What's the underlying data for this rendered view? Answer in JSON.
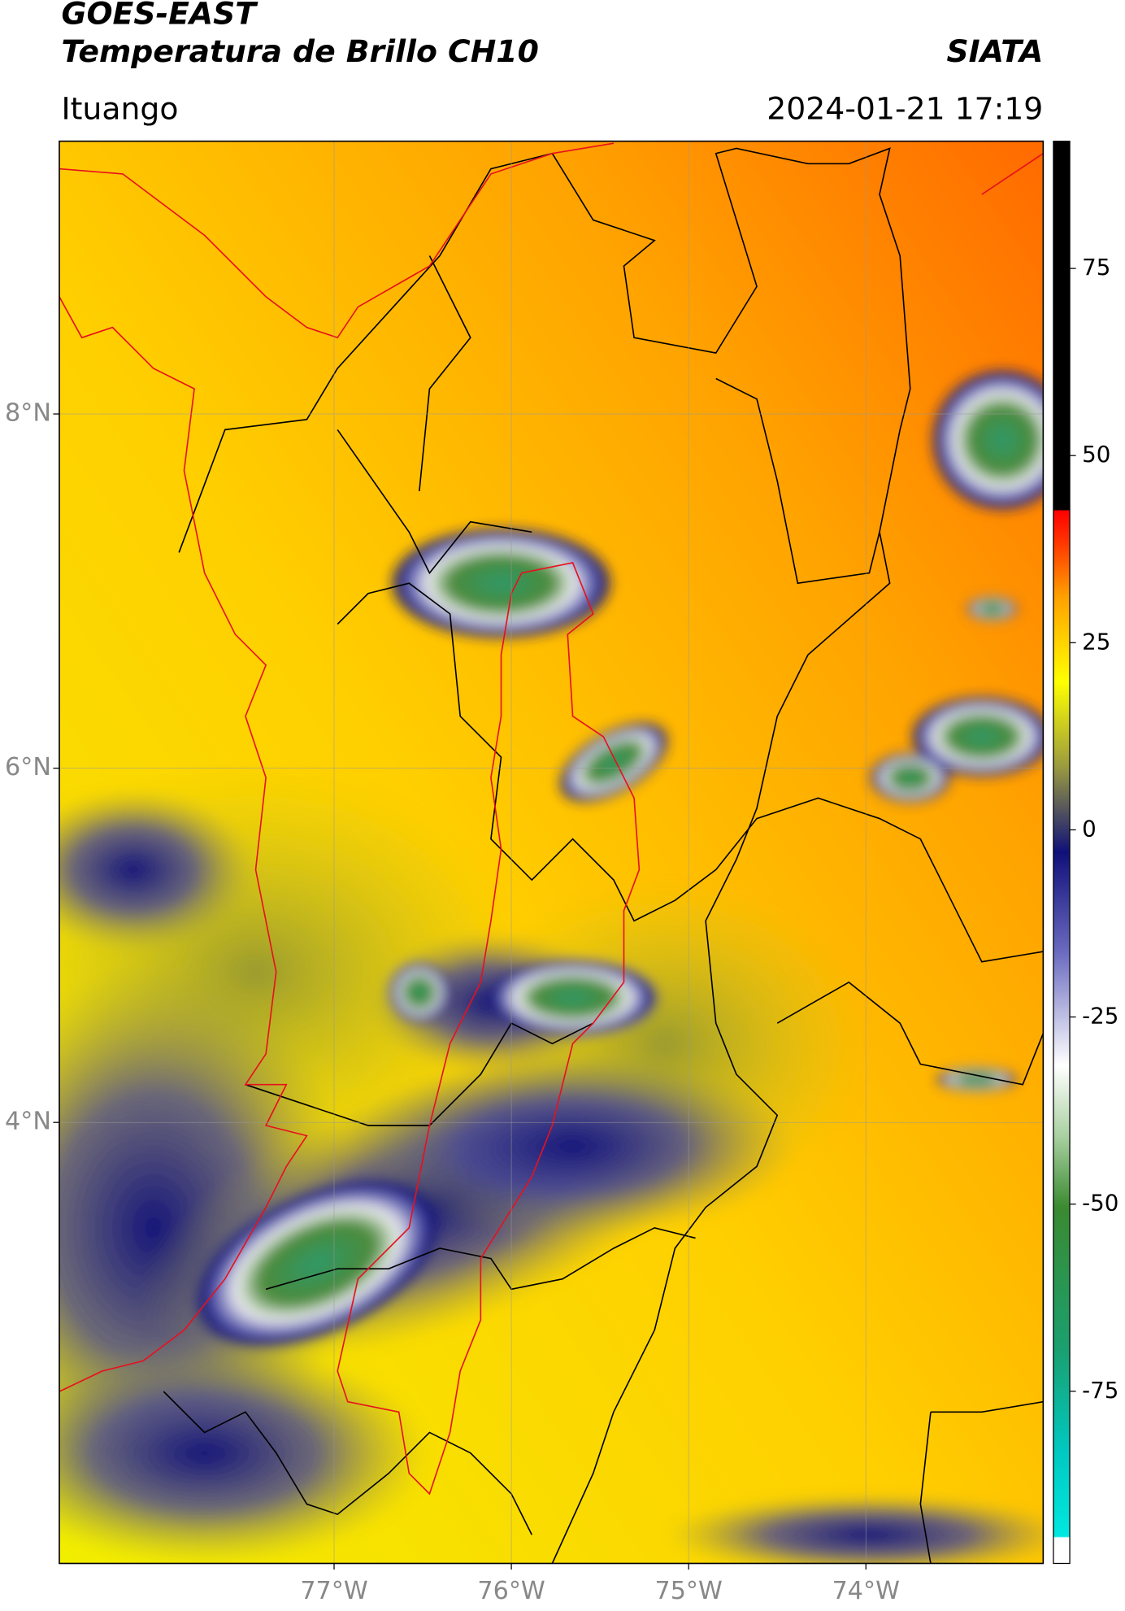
{
  "header": {
    "title": "GOES-EAST",
    "subtitle": "Temperatura de Brillo CH10",
    "source": "SIATA",
    "region": "Ituango",
    "datetime": "2024-01-21 17:19"
  },
  "map": {
    "xlim": [
      -78.55,
      -73.0
    ],
    "ylim": [
      1.51,
      9.54
    ],
    "xticks": [
      {
        "value": -77,
        "label": "77°W"
      },
      {
        "value": -76,
        "label": "76°W"
      },
      {
        "value": -75,
        "label": "75°W"
      },
      {
        "value": -74,
        "label": "74°W"
      }
    ],
    "yticks": [
      {
        "value": 4,
        "label": "4°N"
      },
      {
        "value": 6,
        "label": "6°N"
      },
      {
        "value": 8,
        "label": "8°N"
      }
    ],
    "grid": true
  },
  "colorbar": {
    "clim": [
      -98,
      92
    ],
    "ticks": [
      -75,
      -50,
      -25,
      0,
      25,
      50,
      75
    ]
  }
}
